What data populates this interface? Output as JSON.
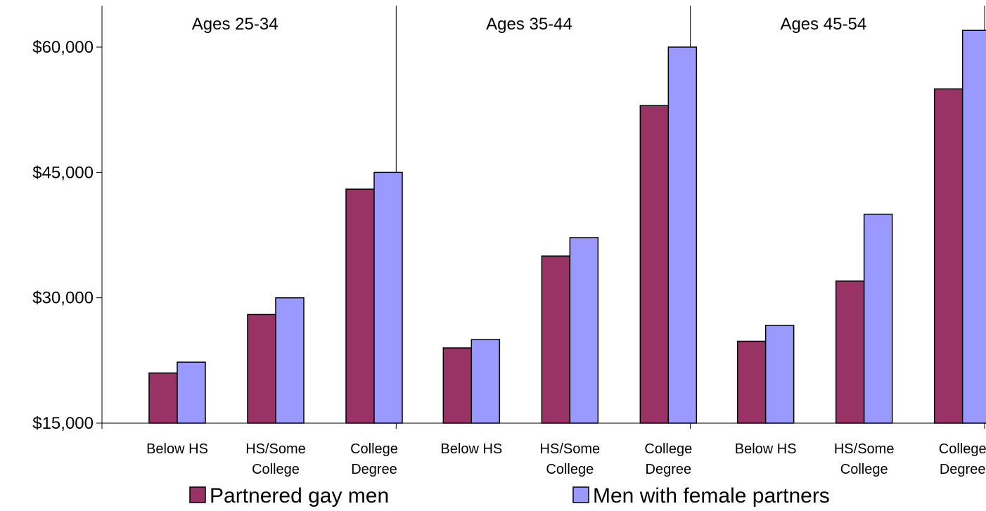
{
  "chart_data": {
    "type": "bar",
    "y_ticks": [
      "$15,000",
      "$30,000",
      "$45,000",
      "$60,000"
    ],
    "y_tick_values": [
      15000,
      30000,
      45000,
      60000
    ],
    "ylim": [
      15000,
      64000
    ],
    "grid": false,
    "legend_position": "bottom",
    "panels": [
      {
        "title": "Ages 25-34",
        "categories": [
          [
            "Below HS"
          ],
          [
            "HS/Some",
            "College"
          ],
          [
            "College",
            "Degree"
          ]
        ],
        "series": [
          {
            "name": "Partnered gay men",
            "values": [
              21000,
              28000,
              43000
            ]
          },
          {
            "name": "Men with female partners",
            "values": [
              22300,
              30000,
              45000
            ]
          }
        ]
      },
      {
        "title": "Ages 35-44",
        "categories": [
          [
            "Below HS"
          ],
          [
            "HS/Some",
            "College"
          ],
          [
            "College",
            "Degree"
          ]
        ],
        "series": [
          {
            "name": "Partnered gay men",
            "values": [
              24000,
              35000,
              53000
            ]
          },
          {
            "name": "Men with female partners",
            "values": [
              25000,
              37200,
              60000
            ]
          }
        ]
      },
      {
        "title": "Ages 45-54",
        "categories": [
          [
            "Below HS"
          ],
          [
            "HS/Some",
            "College"
          ],
          [
            "College",
            "Degree"
          ]
        ],
        "series": [
          {
            "name": "Partnered gay men",
            "values": [
              24800,
              32000,
              55000
            ]
          },
          {
            "name": "Men with female partners",
            "values": [
              26700,
              40000,
              62000
            ]
          }
        ]
      }
    ],
    "legend": [
      {
        "label": "Partnered gay men",
        "color": "#993366"
      },
      {
        "label": "Men with female partners",
        "color": "#9999ff"
      }
    ]
  }
}
